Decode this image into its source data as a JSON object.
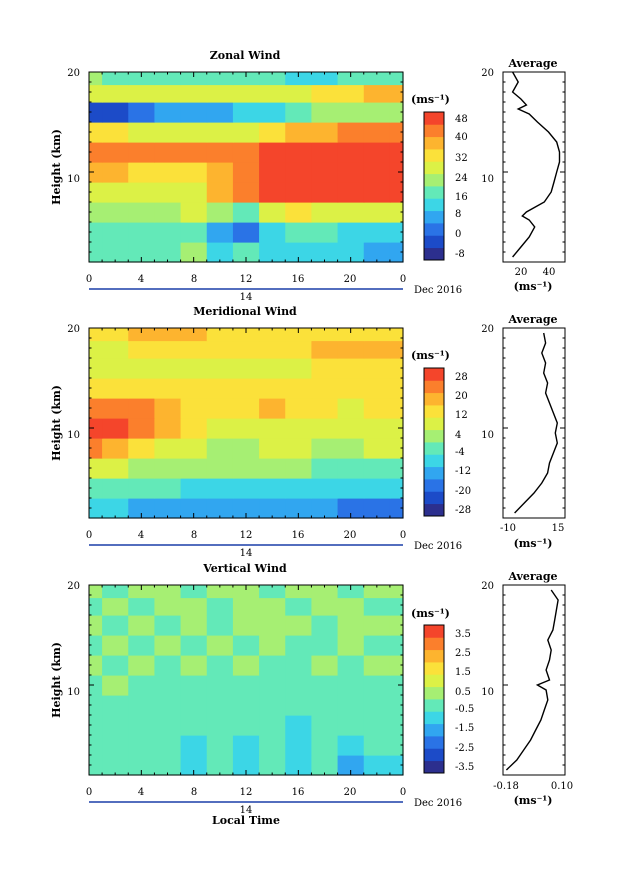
{
  "chart_data": [
    {
      "type": "heatmap",
      "title": "Zonal Wind",
      "ylabel": "Height (km)",
      "yticks": [
        "20",
        "10"
      ],
      "xticks": [
        "0",
        "4",
        "8",
        "12",
        "16",
        "20",
        "0"
      ],
      "xlim": [
        0,
        24
      ],
      "ylim": [
        1,
        20
      ],
      "day_label": "14",
      "date_label": "Dec 2016",
      "colorbar_unit": "(ms⁻¹)",
      "colorbar_ticks": [
        "48",
        "40",
        "32",
        "24",
        "16",
        "8",
        "0",
        "-8"
      ],
      "colorbar_range": [
        -12,
        52
      ],
      "colorbar_colors": [
        "#2c2f8e",
        "#1c4bc8",
        "#2a73e6",
        "#31a6f0",
        "#3cd6e6",
        "#63e9b8",
        "#a6ef73",
        "#dcf146",
        "#fbe13a",
        "#fdb42f",
        "#fb7f2c",
        "#f4452b"
      ],
      "x": [
        0,
        2,
        4,
        6,
        8,
        10,
        12,
        14,
        16,
        18,
        20,
        22,
        24
      ],
      "y": [
        2,
        4,
        6,
        8,
        10,
        12,
        14,
        16,
        18,
        19.5
      ],
      "z": [
        [
          16,
          15,
          16,
          18,
          20,
          14,
          16,
          14,
          12,
          10,
          10,
          9,
          9
        ],
        [
          18,
          18,
          18,
          18,
          16,
          6,
          0,
          10,
          16,
          16,
          14,
          14,
          14
        ],
        [
          22,
          22,
          20,
          22,
          28,
          20,
          16,
          30,
          32,
          30,
          28,
          28,
          28
        ],
        [
          28,
          28,
          26,
          26,
          30,
          38,
          44,
          48,
          48,
          48,
          48,
          48,
          48
        ],
        [
          38,
          36,
          34,
          34,
          34,
          40,
          44,
          48,
          48,
          48,
          48,
          48,
          48
        ],
        [
          46,
          46,
          46,
          46,
          44,
          42,
          44,
          48,
          48,
          48,
          48,
          48,
          48
        ],
        [
          34,
          32,
          30,
          30,
          30,
          30,
          30,
          32,
          36,
          40,
          42,
          42,
          42
        ],
        [
          -4,
          -2,
          2,
          6,
          4,
          8,
          12,
          12,
          18,
          20,
          22,
          24,
          24
        ],
        [
          30,
          28,
          26,
          26,
          28,
          30,
          30,
          30,
          30,
          32,
          34,
          36,
          36
        ],
        [
          20,
          18,
          16,
          16,
          18,
          18,
          18,
          16,
          14,
          14,
          16,
          18,
          18
        ]
      ],
      "profile": {
        "title": "Average",
        "xlabel": "(ms⁻¹)",
        "xticks": [
          "20",
          "40"
        ],
        "xlim": [
          5,
          50
        ],
        "yticks": [
          "20",
          "10"
        ],
        "heights": [
          1.5,
          2.5,
          3.5,
          4.5,
          5.2,
          5.6,
          6.0,
          7,
          8,
          9,
          10,
          11,
          12,
          13,
          14,
          15,
          15.8,
          16.3,
          16.7,
          17.3,
          18,
          19,
          20
        ],
        "values": [
          12,
          18,
          24,
          28,
          24,
          19,
          22,
          35,
          40,
          42,
          44,
          46,
          46,
          44,
          38,
          30,
          24,
          16,
          22,
          18,
          12,
          16,
          12
        ]
      }
    },
    {
      "type": "heatmap",
      "title": "Meridional Wind",
      "ylabel": "Height (km)",
      "yticks": [
        "20",
        "10"
      ],
      "xticks": [
        "0",
        "4",
        "8",
        "12",
        "16",
        "20",
        "0"
      ],
      "xlim": [
        0,
        24
      ],
      "ylim": [
        1,
        20
      ],
      "day_label": "14",
      "date_label": "Dec 2016",
      "colorbar_unit": "(ms⁻¹)",
      "colorbar_ticks": [
        "28",
        "20",
        "12",
        "4",
        "-4",
        "-12",
        "-20",
        "-28"
      ],
      "colorbar_range": [
        -32,
        32
      ],
      "colorbar_colors": [
        "#2c2f8e",
        "#1c4bc8",
        "#2a73e6",
        "#31a6f0",
        "#3cd6e6",
        "#63e9b8",
        "#a6ef73",
        "#dcf146",
        "#fbe13a",
        "#fdb42f",
        "#fb7f2c",
        "#f4452b"
      ],
      "x": [
        0,
        2,
        4,
        6,
        8,
        10,
        12,
        14,
        16,
        18,
        20,
        22,
        24
      ],
      "y": [
        2,
        4,
        6,
        8,
        10,
        12,
        14,
        16,
        18,
        19.5
      ],
      "z": [
        [
          -10,
          -10,
          -12,
          -12,
          -14,
          -14,
          -14,
          -16,
          -16,
          -16,
          -18,
          -18,
          -18
        ],
        [
          -2,
          -2,
          -4,
          -4,
          -6,
          -6,
          -6,
          -6,
          -6,
          -6,
          -6,
          -8,
          -8
        ],
        [
          6,
          6,
          4,
          4,
          2,
          2,
          0,
          0,
          0,
          -2,
          -2,
          -4,
          -4
        ],
        [
          22,
          20,
          14,
          10,
          6,
          4,
          4,
          6,
          6,
          4,
          4,
          6,
          6
        ],
        [
          30,
          28,
          26,
          18,
          12,
          10,
          8,
          10,
          10,
          8,
          8,
          10,
          10
        ],
        [
          26,
          24,
          24,
          18,
          14,
          12,
          12,
          16,
          14,
          12,
          10,
          12,
          12
        ],
        [
          14,
          14,
          14,
          12,
          12,
          12,
          12,
          14,
          14,
          12,
          12,
          12,
          12
        ],
        [
          6,
          8,
          10,
          10,
          8,
          6,
          6,
          8,
          10,
          12,
          12,
          12,
          12
        ],
        [
          8,
          10,
          12,
          12,
          14,
          14,
          12,
          12,
          14,
          16,
          18,
          16,
          16
        ],
        [
          14,
          14,
          16,
          18,
          16,
          14,
          14,
          14,
          14,
          14,
          12,
          12,
          12
        ]
      ],
      "profile": {
        "title": "Average",
        "xlabel": "(ms⁻¹)",
        "xticks": [
          "-10",
          "15"
        ],
        "xlim": [
          -14,
          18
        ],
        "yticks": [
          "20",
          "10"
        ],
        "heights": [
          1.5,
          2.5,
          3.5,
          4.5,
          5.5,
          6.5,
          7.5,
          8.5,
          9.5,
          10.5,
          11.5,
          12.5,
          13.5,
          14.5,
          15.5,
          16.5,
          17.5,
          18.5,
          19.5
        ],
        "values": [
          -8,
          -3,
          2,
          6,
          9,
          10,
          12,
          14,
          13,
          14,
          12,
          10,
          8,
          9,
          7,
          8,
          6,
          8,
          7
        ]
      }
    },
    {
      "type": "heatmap",
      "title": "Vertical Wind",
      "ylabel": "Height (km)",
      "yticks": [
        "20",
        "10"
      ],
      "xticks": [
        "0",
        "4",
        "8",
        "12",
        "16",
        "20",
        "0"
      ],
      "xlim": [
        0,
        24
      ],
      "ylim": [
        1,
        20
      ],
      "day_label": "14",
      "date_label": "Dec 2016",
      "xlabel": "Local Time",
      "colorbar_unit": "(ms⁻¹)",
      "colorbar_ticks": [
        "3.5",
        "2.5",
        "1.5",
        "0.5",
        "-0.5",
        "-1.5",
        "-2.5",
        "-3.5"
      ],
      "colorbar_range": [
        -4,
        4
      ],
      "colorbar_colors": [
        "#2c2f8e",
        "#1c4bc8",
        "#2a73e6",
        "#31a6f0",
        "#3cd6e6",
        "#63e9b8",
        "#a6ef73",
        "#dcf146",
        "#fbe13a",
        "#fdb42f",
        "#fb7f2c",
        "#f4452b"
      ],
      "x": [
        0,
        2,
        4,
        6,
        8,
        10,
        12,
        14,
        16,
        18,
        20,
        22,
        24
      ],
      "y": [
        2,
        4,
        6,
        8,
        10,
        12,
        14,
        16,
        18,
        19.5
      ],
      "z": [
        [
          -0.6,
          -0.4,
          -0.2,
          -0.6,
          -0.8,
          -0.4,
          -1.0,
          -0.6,
          -1.2,
          -0.6,
          -1.4,
          -0.8,
          -0.8
        ],
        [
          -0.4,
          -0.2,
          -0.6,
          -0.4,
          -0.8,
          -0.6,
          -0.8,
          -0.6,
          -1.0,
          -0.6,
          -0.8,
          -0.6,
          -0.6
        ],
        [
          -0.2,
          -0.4,
          -0.2,
          -0.6,
          -0.4,
          -0.6,
          -0.6,
          -0.4,
          -0.8,
          -0.6,
          -0.6,
          -0.4,
          -0.4
        ],
        [
          -0.2,
          -0.2,
          -0.4,
          -0.2,
          -0.4,
          -0.2,
          -0.6,
          -0.4,
          -0.4,
          -0.6,
          -0.4,
          -0.2,
          -0.2
        ],
        [
          -0.2,
          0.0,
          -0.2,
          -0.2,
          -0.4,
          -0.2,
          -0.2,
          -0.4,
          -0.2,
          -0.4,
          -0.2,
          -0.2,
          -0.2
        ],
        [
          0.0,
          -0.2,
          0.0,
          -0.2,
          0.0,
          -0.2,
          0.0,
          -0.2,
          -0.2,
          0.0,
          -0.2,
          0.0,
          0.0
        ],
        [
          -0.2,
          0.0,
          -0.2,
          0.0,
          -0.2,
          0.0,
          -0.2,
          0.0,
          -0.2,
          -0.2,
          0.0,
          -0.2,
          -0.2
        ],
        [
          0.0,
          -0.2,
          0.0,
          -0.2,
          0.0,
          -0.2,
          0.0,
          0.2,
          0.0,
          -0.2,
          0.0,
          0.0,
          0.0
        ],
        [
          -0.2,
          0.0,
          -0.2,
          0.0,
          0.0,
          -0.2,
          0.0,
          0.0,
          -0.2,
          0.0,
          0.0,
          -0.2,
          -0.2
        ],
        [
          0.0,
          -0.2,
          0.0,
          0.0,
          -0.2,
          0.0,
          0.0,
          -0.2,
          0.0,
          0.0,
          -0.2,
          0.0,
          0.0
        ]
      ],
      "profile": {
        "title": "Average",
        "xlabel": "(ms⁻¹)",
        "xticks": [
          "-0.18",
          "0.10"
        ],
        "xlim": [
          -0.22,
          0.14
        ],
        "yticks": [
          "20",
          "10"
        ],
        "heights": [
          1.5,
          2.5,
          3.5,
          4.5,
          5.5,
          6.5,
          7.5,
          8.5,
          9.5,
          10.0,
          10.5,
          11.5,
          12.5,
          13.5,
          14.5,
          15.5,
          16.5,
          17.5,
          18.5,
          19.5
        ],
        "values": [
          -0.2,
          -0.14,
          -0.1,
          -0.06,
          -0.03,
          0.0,
          0.02,
          0.04,
          0.03,
          -0.02,
          0.05,
          0.03,
          0.05,
          0.06,
          0.04,
          0.07,
          0.08,
          0.09,
          0.1,
          0.06
        ]
      }
    }
  ]
}
